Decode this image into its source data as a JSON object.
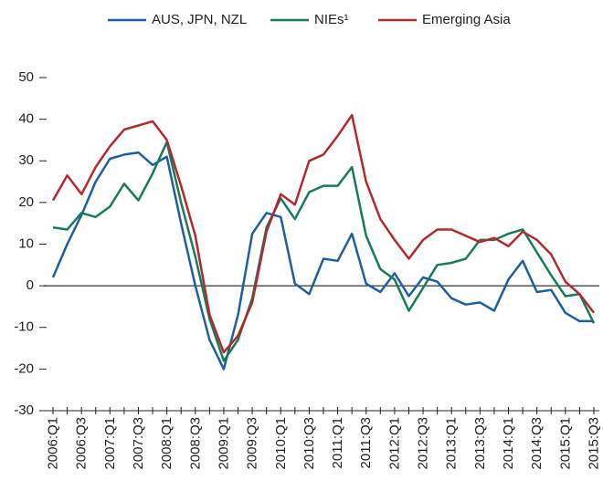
{
  "chart_data": {
    "type": "line",
    "categories": [
      "2006:Q1",
      null,
      "2006:Q3",
      null,
      "2007:Q1",
      null,
      "2007:Q3",
      null,
      "2008:Q1",
      null,
      "2008:Q3",
      null,
      "2009:Q1",
      null,
      "2009:Q3",
      null,
      "2010:Q1",
      null,
      "2010:Q3",
      null,
      "2011:Q1",
      null,
      "2011:Q3",
      null,
      "2012:Q1",
      null,
      "2012:Q3",
      null,
      "2013:Q1",
      null,
      "2013:Q3",
      null,
      "2014:Q1",
      null,
      "2014:Q3",
      null,
      "2015:Q1",
      null,
      "2015:Q3"
    ],
    "series": [
      {
        "name": "AUS, JPN, NZL",
        "color": "#1f5fa0",
        "values": [
          2,
          10,
          17,
          25,
          30.5,
          31.5,
          32,
          29,
          31,
          15,
          0,
          -13,
          -20,
          -7,
          12.5,
          17.5,
          16.5,
          0.5,
          -2,
          6.5,
          6,
          12.5,
          0.5,
          -1.5,
          3,
          -2.5,
          2,
          1,
          -3,
          -4.5,
          -4,
          -6,
          1.5,
          6,
          -1.5,
          -1,
          -6.5,
          -8.5,
          -8.5
        ]
      },
      {
        "name": "NIEs¹",
        "color": "#1a7a5a",
        "values": [
          14,
          13.5,
          17.5,
          16.5,
          19,
          24.5,
          20.5,
          27,
          34.5,
          20,
          7,
          -8,
          -18,
          -13,
          -3,
          14,
          21,
          16,
          22.5,
          24,
          24,
          28.5,
          12,
          4,
          1.5,
          -6,
          -0.5,
          5,
          5.5,
          6.5,
          11,
          11,
          12.5,
          13.5,
          8,
          2.5,
          -2.5,
          -2,
          -9
        ]
      },
      {
        "name": "Emerging Asia",
        "color": "#b22a2e",
        "values": [
          20.5,
          26.5,
          22,
          28.5,
          33.5,
          37.5,
          38.5,
          39.5,
          35,
          24,
          12,
          -7,
          -16,
          -12,
          -4,
          13,
          22,
          19.5,
          30,
          31.5,
          36,
          41,
          25,
          16,
          11,
          6.5,
          11,
          13.5,
          13.5,
          12,
          10.5,
          11.5,
          9.5,
          13,
          11,
          7.5,
          1,
          -2,
          -6.5
        ]
      }
    ],
    "ylim": [
      -30,
      50
    ],
    "yticks": [
      -30,
      -20,
      -10,
      0,
      10,
      20,
      30,
      40,
      50
    ],
    "legend": "top"
  }
}
